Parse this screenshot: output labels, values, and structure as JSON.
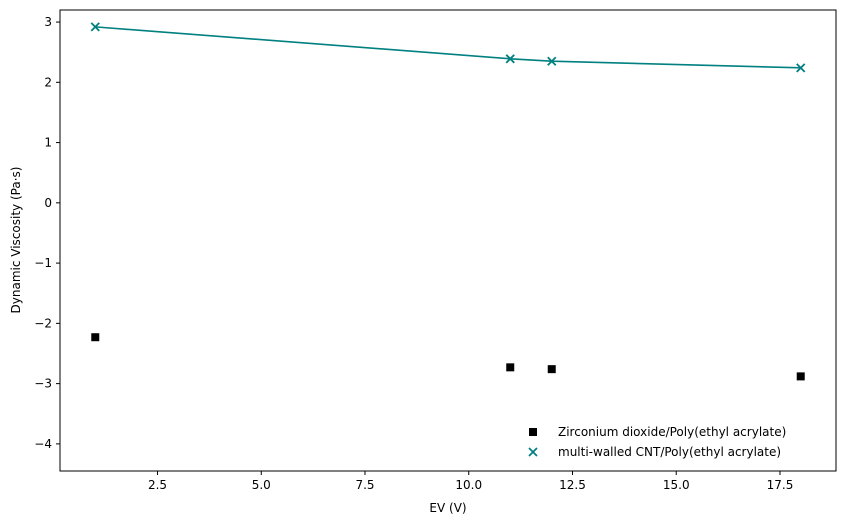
{
  "chart_data": {
    "type": "scatter",
    "title": "",
    "xlabel": "EV (V)",
    "ylabel": "Dynamic Viscosity (Pa·s)",
    "xlim": [
      0.15,
      18.85
    ],
    "ylim": [
      -4.45,
      3.2
    ],
    "xticks": [
      2.5,
      5.0,
      7.5,
      10.0,
      12.5,
      15.0,
      17.5
    ],
    "xtick_labels": [
      "2.5",
      "5.0",
      "7.5",
      "10.0",
      "12.5",
      "15.0",
      "17.5"
    ],
    "yticks": [
      3,
      2,
      1,
      0,
      -1,
      -2,
      -3,
      -4
    ],
    "ytick_labels": [
      "3",
      "2",
      "1",
      "0",
      "−1",
      "−2",
      "−3",
      "−4"
    ],
    "grid": false,
    "legend_position": "lower-right",
    "series": [
      {
        "name": "Zirconium dioxide/Poly(ethyl acrylate)",
        "marker": "square",
        "line": false,
        "color": "#000000",
        "x": [
          1,
          11,
          12,
          18
        ],
        "y": [
          -2.23,
          -2.73,
          -2.76,
          -2.88
        ]
      },
      {
        "name": "multi-walled CNT/Poly(ethyl acrylate)",
        "marker": "x",
        "line": true,
        "color": "#008080",
        "x": [
          1,
          11,
          12,
          18
        ],
        "y": [
          2.92,
          2.39,
          2.35,
          2.24
        ]
      }
    ]
  }
}
